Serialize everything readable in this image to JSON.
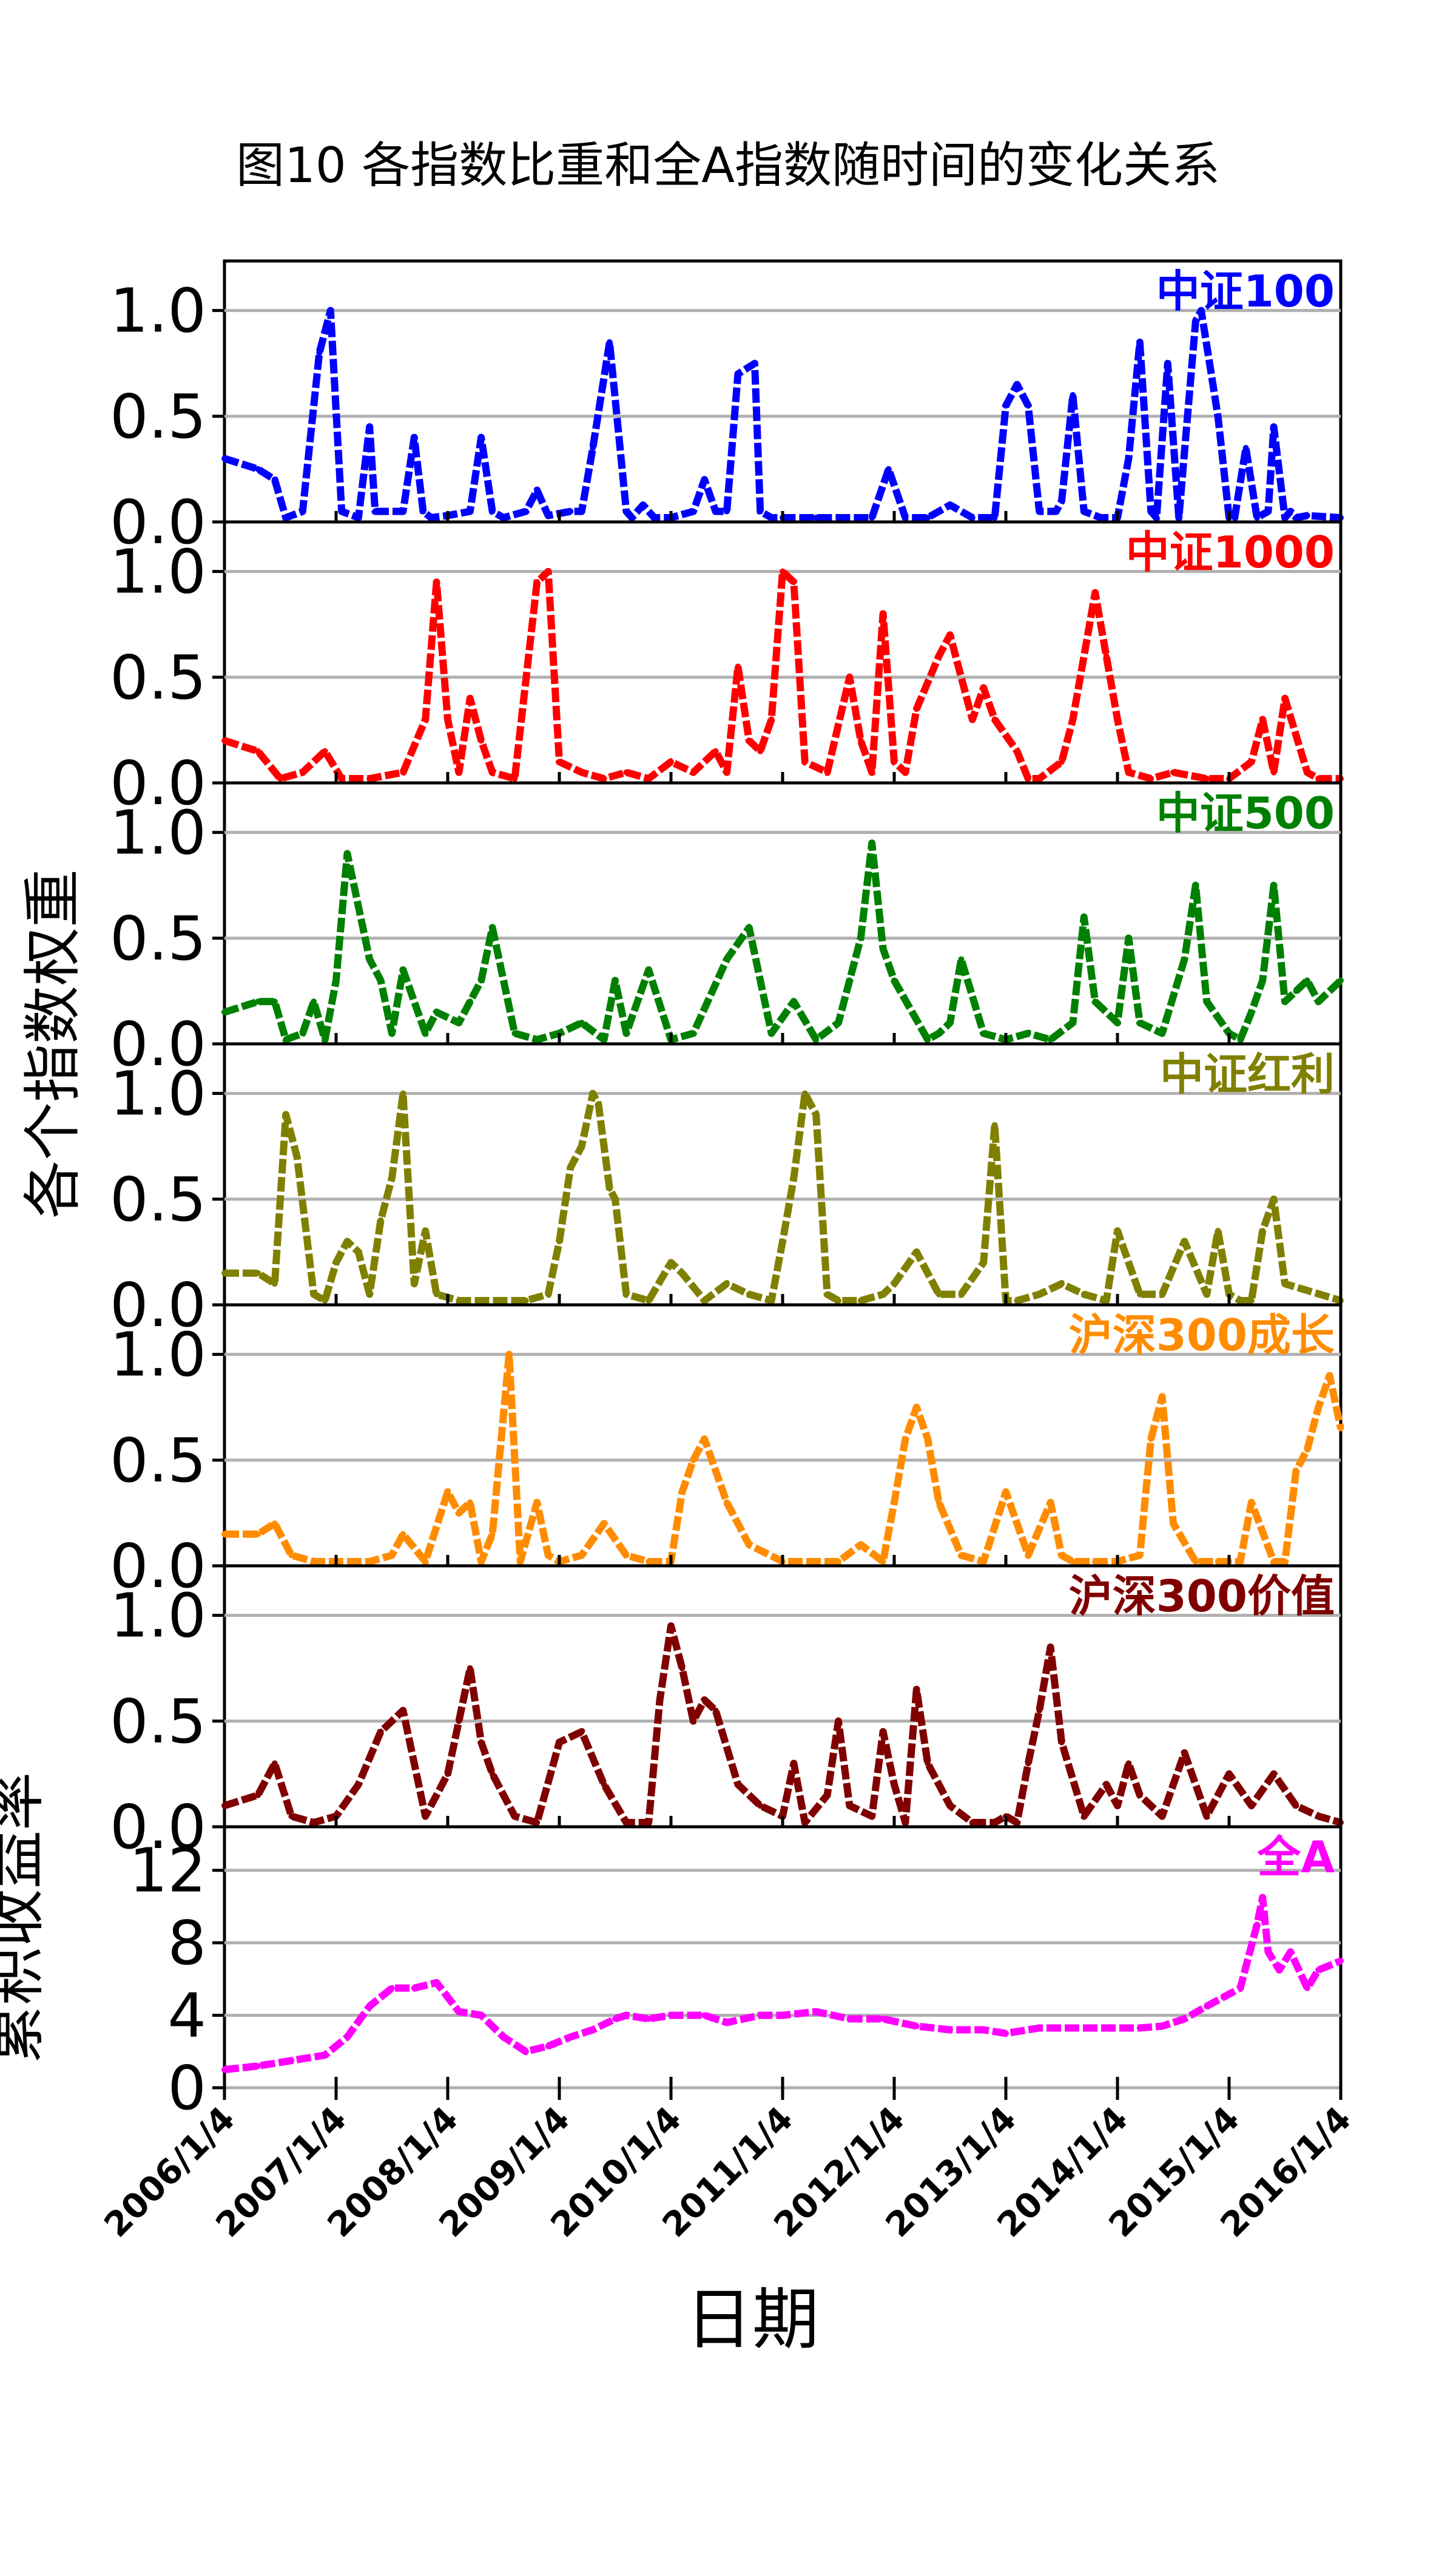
{
  "title": "图10 各指数比重和全A指数随时间的变化关系",
  "xlabel": "日期",
  "ylabel_weight": "各个指数权重",
  "ylabel_return": "累积收益率",
  "chart_data": {
    "type": "line",
    "x_ticks": [
      "2006/1/4",
      "2007/1/4",
      "2008/1/4",
      "2009/1/4",
      "2010/1/4",
      "2011/1/4",
      "2012/1/4",
      "2013/1/4",
      "2014/1/4",
      "2015/1/4",
      "2016/1/4"
    ],
    "x_range": [
      2006.0,
      2016.0
    ],
    "grid": true,
    "panels": [
      {
        "name": "中证100",
        "color": "#0000ff",
        "ylim": [
          0,
          1.2
        ],
        "y_ticks": [
          "0.0",
          "0.5",
          "1.0"
        ],
        "x": [
          2006.0,
          2006.3,
          2006.45,
          2006.55,
          2006.7,
          2006.85,
          2006.95,
          2007.05,
          2007.2,
          2007.3,
          2007.35,
          2007.6,
          2007.7,
          2007.78,
          2007.85,
          2008.0,
          2008.2,
          2008.3,
          2008.4,
          2008.5,
          2008.7,
          2008.8,
          2008.9,
          2009.1,
          2009.2,
          2009.3,
          2009.45,
          2009.6,
          2009.65,
          2009.75,
          2009.85,
          2010.0,
          2010.2,
          2010.3,
          2010.4,
          2010.5,
          2010.6,
          2010.75,
          2010.8,
          2010.9,
          2011.0,
          2011.3,
          2011.8,
          2011.95,
          2012.1,
          2012.3,
          2012.5,
          2012.7,
          2012.9,
          2013.0,
          2013.1,
          2013.2,
          2013.3,
          2013.45,
          2013.5,
          2013.6,
          2013.7,
          2013.85,
          2014.0,
          2014.1,
          2014.2,
          2014.3,
          2014.35,
          2014.45,
          2014.55,
          2014.7,
          2014.75,
          2014.9,
          2015.0,
          2015.05,
          2015.15,
          2015.25,
          2015.35,
          2015.4,
          2015.5,
          2015.55,
          2015.6,
          2015.7,
          2016.0
        ],
        "y": [
          0.3,
          0.25,
          0.2,
          0.02,
          0.05,
          0.8,
          1.0,
          0.05,
          0.02,
          0.45,
          0.05,
          0.05,
          0.4,
          0.05,
          0.02,
          0.03,
          0.05,
          0.4,
          0.05,
          0.02,
          0.05,
          0.15,
          0.03,
          0.05,
          0.05,
          0.35,
          0.85,
          0.05,
          0.02,
          0.08,
          0.02,
          0.02,
          0.05,
          0.2,
          0.05,
          0.05,
          0.7,
          0.75,
          0.05,
          0.02,
          0.02,
          0.02,
          0.02,
          0.25,
          0.02,
          0.02,
          0.08,
          0.02,
          0.02,
          0.55,
          0.65,
          0.55,
          0.05,
          0.05,
          0.1,
          0.6,
          0.05,
          0.02,
          0.02,
          0.3,
          0.85,
          0.05,
          0.02,
          0.75,
          0.02,
          0.95,
          1.0,
          0.5,
          0.02,
          0.02,
          0.35,
          0.02,
          0.05,
          0.45,
          0.02,
          0.05,
          0.02,
          0.03,
          0.02
        ]
      },
      {
        "name": "中证1000",
        "color": "#ff0000",
        "ylim": [
          0,
          1.2
        ],
        "y_ticks": [
          "0.0",
          "0.5",
          "1.0"
        ],
        "x": [
          2006.0,
          2006.3,
          2006.5,
          2006.7,
          2006.9,
          2007.05,
          2007.3,
          2007.6,
          2007.8,
          2007.9,
          2008.0,
          2008.1,
          2008.2,
          2008.3,
          2008.4,
          2008.6,
          2008.8,
          2008.9,
          2009.0,
          2009.2,
          2009.4,
          2009.6,
          2009.8,
          2010.0,
          2010.2,
          2010.4,
          2010.5,
          2010.6,
          2010.7,
          2010.8,
          2010.9,
          2011.0,
          2011.1,
          2011.2,
          2011.4,
          2011.6,
          2011.7,
          2011.8,
          2011.9,
          2012.0,
          2012.1,
          2012.2,
          2012.4,
          2012.5,
          2012.7,
          2012.8,
          2012.9,
          2013.1,
          2013.2,
          2013.3,
          2013.5,
          2013.6,
          2013.8,
          2013.9,
          2014.0,
          2014.1,
          2014.3,
          2014.5,
          2014.8,
          2015.0,
          2015.2,
          2015.3,
          2015.4,
          2015.5,
          2015.7,
          2015.8,
          2016.0
        ],
        "y": [
          0.2,
          0.15,
          0.02,
          0.05,
          0.15,
          0.02,
          0.02,
          0.05,
          0.3,
          0.95,
          0.3,
          0.05,
          0.4,
          0.2,
          0.05,
          0.02,
          0.95,
          1.0,
          0.1,
          0.05,
          0.02,
          0.05,
          0.02,
          0.1,
          0.05,
          0.15,
          0.05,
          0.55,
          0.2,
          0.15,
          0.3,
          1.0,
          0.95,
          0.1,
          0.05,
          0.5,
          0.2,
          0.05,
          0.8,
          0.1,
          0.05,
          0.35,
          0.6,
          0.7,
          0.3,
          0.45,
          0.3,
          0.15,
          0.02,
          0.02,
          0.1,
          0.3,
          0.9,
          0.6,
          0.3,
          0.05,
          0.02,
          0.05,
          0.02,
          0.02,
          0.1,
          0.3,
          0.05,
          0.4,
          0.05,
          0.02,
          0.02
        ]
      },
      {
        "name": "中证500",
        "color": "#008000",
        "ylim": [
          0,
          1.2
        ],
        "y_ticks": [
          "0.0",
          "0.5",
          "1.0"
        ],
        "x": [
          2006.0,
          2006.3,
          2006.45,
          2006.55,
          2006.7,
          2006.8,
          2006.9,
          2007.0,
          2007.1,
          2007.3,
          2007.4,
          2007.5,
          2007.6,
          2007.8,
          2007.9,
          2008.1,
          2008.2,
          2008.3,
          2008.4,
          2008.6,
          2008.8,
          2009.0,
          2009.2,
          2009.4,
          2009.5,
          2009.6,
          2009.8,
          2010.0,
          2010.2,
          2010.5,
          2010.7,
          2010.9,
          2011.1,
          2011.3,
          2011.5,
          2011.6,
          2011.7,
          2011.8,
          2011.9,
          2012.0,
          2012.3,
          2012.4,
          2012.5,
          2012.6,
          2012.8,
          2013.0,
          2013.2,
          2013.4,
          2013.6,
          2013.7,
          2013.8,
          2014.0,
          2014.1,
          2014.2,
          2014.4,
          2014.6,
          2014.7,
          2014.8,
          2015.0,
          2015.1,
          2015.2,
          2015.3,
          2015.4,
          2015.5,
          2015.6,
          2015.7,
          2015.8,
          2016.0
        ],
        "y": [
          0.15,
          0.2,
          0.2,
          0.02,
          0.05,
          0.2,
          0.02,
          0.3,
          0.9,
          0.4,
          0.3,
          0.05,
          0.35,
          0.05,
          0.15,
          0.1,
          0.2,
          0.3,
          0.55,
          0.05,
          0.02,
          0.05,
          0.1,
          0.02,
          0.3,
          0.05,
          0.35,
          0.02,
          0.05,
          0.4,
          0.55,
          0.05,
          0.2,
          0.02,
          0.1,
          0.3,
          0.5,
          0.95,
          0.45,
          0.3,
          0.02,
          0.05,
          0.1,
          0.4,
          0.05,
          0.02,
          0.05,
          0.02,
          0.1,
          0.6,
          0.2,
          0.1,
          0.5,
          0.1,
          0.05,
          0.4,
          0.75,
          0.2,
          0.05,
          0.02,
          0.15,
          0.3,
          0.75,
          0.2,
          0.25,
          0.3,
          0.2,
          0.3
        ]
      },
      {
        "name": "中证红利",
        "color": "#808000",
        "ylim": [
          0,
          1.2
        ],
        "y_ticks": [
          "0.0",
          "0.5",
          "1.0"
        ],
        "x": [
          2006.0,
          2006.3,
          2006.45,
          2006.55,
          2006.65,
          2006.8,
          2006.9,
          2007.0,
          2007.1,
          2007.2,
          2007.3,
          2007.4,
          2007.5,
          2007.6,
          2007.7,
          2007.8,
          2007.9,
          2008.1,
          2008.3,
          2008.5,
          2008.7,
          2008.9,
          2009.0,
          2009.1,
          2009.2,
          2009.3,
          2009.35,
          2009.45,
          2009.5,
          2009.6,
          2009.8,
          2010.0,
          2010.1,
          2010.3,
          2010.5,
          2010.7,
          2010.9,
          2011.0,
          2011.1,
          2011.2,
          2011.3,
          2011.4,
          2011.5,
          2011.7,
          2011.9,
          2012.0,
          2012.2,
          2012.4,
          2012.6,
          2012.8,
          2012.9,
          2013.0,
          2013.1,
          2013.3,
          2013.5,
          2013.7,
          2013.9,
          2014.0,
          2014.2,
          2014.4,
          2014.6,
          2014.8,
          2014.9,
          2015.0,
          2015.1,
          2015.2,
          2015.3,
          2015.4,
          2015.5,
          2016.0
        ],
        "y": [
          0.15,
          0.15,
          0.1,
          0.9,
          0.7,
          0.05,
          0.02,
          0.2,
          0.3,
          0.25,
          0.05,
          0.4,
          0.6,
          1.0,
          0.1,
          0.35,
          0.05,
          0.02,
          0.02,
          0.02,
          0.02,
          0.05,
          0.3,
          0.65,
          0.75,
          1.0,
          0.95,
          0.55,
          0.5,
          0.05,
          0.02,
          0.2,
          0.15,
          0.02,
          0.1,
          0.05,
          0.02,
          0.3,
          0.6,
          1.0,
          0.9,
          0.05,
          0.02,
          0.02,
          0.05,
          0.1,
          0.25,
          0.05,
          0.05,
          0.2,
          0.85,
          0.02,
          0.02,
          0.05,
          0.1,
          0.05,
          0.02,
          0.35,
          0.05,
          0.05,
          0.3,
          0.05,
          0.35,
          0.05,
          0.02,
          0.02,
          0.35,
          0.5,
          0.1,
          0.02
        ]
      },
      {
        "name": "沪深300成长",
        "color": "#ff8c00",
        "ylim": [
          0,
          1.2
        ],
        "y_ticks": [
          "0.0",
          "0.5",
          "1.0"
        ],
        "x": [
          2006.0,
          2006.3,
          2006.45,
          2006.6,
          2006.8,
          2007.0,
          2007.3,
          2007.5,
          2007.6,
          2007.8,
          2008.0,
          2008.1,
          2008.2,
          2008.3,
          2008.4,
          2008.55,
          2008.65,
          2008.8,
          2008.9,
          2009.0,
          2009.2,
          2009.4,
          2009.6,
          2009.8,
          2010.0,
          2010.1,
          2010.2,
          2010.3,
          2010.5,
          2010.7,
          2011.0,
          2011.3,
          2011.5,
          2011.7,
          2011.9,
          2012.0,
          2012.1,
          2012.2,
          2012.3,
          2012.4,
          2012.6,
          2012.8,
          2013.0,
          2013.2,
          2013.4,
          2013.5,
          2013.6,
          2013.8,
          2014.0,
          2014.2,
          2014.3,
          2014.4,
          2014.5,
          2014.7,
          2014.9,
          2015.0,
          2015.1,
          2015.2,
          2015.4,
          2015.5,
          2015.6,
          2015.7,
          2015.8,
          2015.9,
          2016.0
        ],
        "y": [
          0.15,
          0.15,
          0.2,
          0.05,
          0.02,
          0.02,
          0.02,
          0.05,
          0.15,
          0.02,
          0.35,
          0.25,
          0.3,
          0.02,
          0.15,
          1.0,
          0.02,
          0.3,
          0.05,
          0.02,
          0.05,
          0.2,
          0.05,
          0.02,
          0.02,
          0.35,
          0.5,
          0.6,
          0.3,
          0.1,
          0.02,
          0.02,
          0.02,
          0.1,
          0.02,
          0.3,
          0.6,
          0.75,
          0.6,
          0.3,
          0.05,
          0.02,
          0.35,
          0.05,
          0.3,
          0.05,
          0.02,
          0.02,
          0.02,
          0.05,
          0.6,
          0.8,
          0.2,
          0.02,
          0.02,
          0.02,
          0.02,
          0.3,
          0.02,
          0.02,
          0.45,
          0.55,
          0.75,
          0.9,
          0.65
        ]
      },
      {
        "name": "沪深300价值",
        "color": "#800000",
        "ylim": [
          0,
          1.2
        ],
        "y_ticks": [
          "0.0",
          "0.5",
          "1.0"
        ],
        "x": [
          2006.0,
          2006.3,
          2006.45,
          2006.6,
          2006.8,
          2007.0,
          2007.2,
          2007.4,
          2007.6,
          2007.8,
          2008.0,
          2008.1,
          2008.2,
          2008.3,
          2008.4,
          2008.6,
          2008.8,
          2009.0,
          2009.2,
          2009.4,
          2009.6,
          2009.8,
          2009.9,
          2010.0,
          2010.1,
          2010.2,
          2010.3,
          2010.4,
          2010.6,
          2010.8,
          2011.0,
          2011.1,
          2011.2,
          2011.4,
          2011.5,
          2011.6,
          2011.8,
          2011.9,
          2012.0,
          2012.1,
          2012.2,
          2012.3,
          2012.5,
          2012.7,
          2012.9,
          2013.0,
          2013.1,
          2013.2,
          2013.3,
          2013.4,
          2013.5,
          2013.7,
          2013.9,
          2014.0,
          2014.1,
          2014.2,
          2014.4,
          2014.6,
          2014.8,
          2015.0,
          2015.2,
          2015.4,
          2015.6,
          2015.8,
          2016.0
        ],
        "y": [
          0.1,
          0.15,
          0.3,
          0.05,
          0.02,
          0.05,
          0.2,
          0.45,
          0.55,
          0.05,
          0.25,
          0.5,
          0.75,
          0.4,
          0.25,
          0.05,
          0.02,
          0.4,
          0.45,
          0.2,
          0.02,
          0.02,
          0.6,
          0.95,
          0.75,
          0.5,
          0.6,
          0.55,
          0.2,
          0.1,
          0.05,
          0.3,
          0.02,
          0.15,
          0.5,
          0.1,
          0.05,
          0.45,
          0.2,
          0.02,
          0.65,
          0.3,
          0.1,
          0.02,
          0.02,
          0.05,
          0.02,
          0.3,
          0.55,
          0.85,
          0.4,
          0.05,
          0.2,
          0.1,
          0.3,
          0.15,
          0.05,
          0.35,
          0.05,
          0.25,
          0.1,
          0.25,
          0.1,
          0.05,
          0.02
        ]
      },
      {
        "name": "全A",
        "color": "#ff00ff",
        "ylim": [
          0,
          14
        ],
        "y_ticks": [
          "0",
          "4",
          "8",
          "12"
        ],
        "x": [
          2006.0,
          2006.3,
          2006.6,
          2006.9,
          2007.1,
          2007.3,
          2007.5,
          2007.7,
          2007.9,
          2008.1,
          2008.3,
          2008.5,
          2008.7,
          2008.9,
          2009.1,
          2009.3,
          2009.5,
          2009.6,
          2009.8,
          2010.0,
          2010.3,
          2010.5,
          2010.8,
          2011.0,
          2011.3,
          2011.6,
          2011.9,
          2012.2,
          2012.5,
          2012.8,
          2013.0,
          2013.3,
          2013.6,
          2013.9,
          2014.2,
          2014.4,
          2014.6,
          2014.8,
          2014.95,
          2015.1,
          2015.25,
          2015.3,
          2015.35,
          2015.45,
          2015.55,
          2015.7,
          2015.8,
          2016.0
        ],
        "y": [
          1.0,
          1.2,
          1.5,
          1.8,
          2.8,
          4.5,
          5.5,
          5.5,
          5.8,
          4.2,
          4.0,
          2.8,
          2.0,
          2.3,
          2.8,
          3.2,
          3.8,
          4.0,
          3.8,
          4.0,
          4.0,
          3.6,
          4.0,
          4.0,
          4.2,
          3.8,
          3.8,
          3.4,
          3.2,
          3.2,
          3.0,
          3.3,
          3.3,
          3.3,
          3.3,
          3.4,
          3.8,
          4.5,
          5.0,
          5.5,
          9.0,
          10.5,
          7.5,
          6.5,
          7.5,
          5.5,
          6.5,
          7.0
        ]
      }
    ]
  }
}
